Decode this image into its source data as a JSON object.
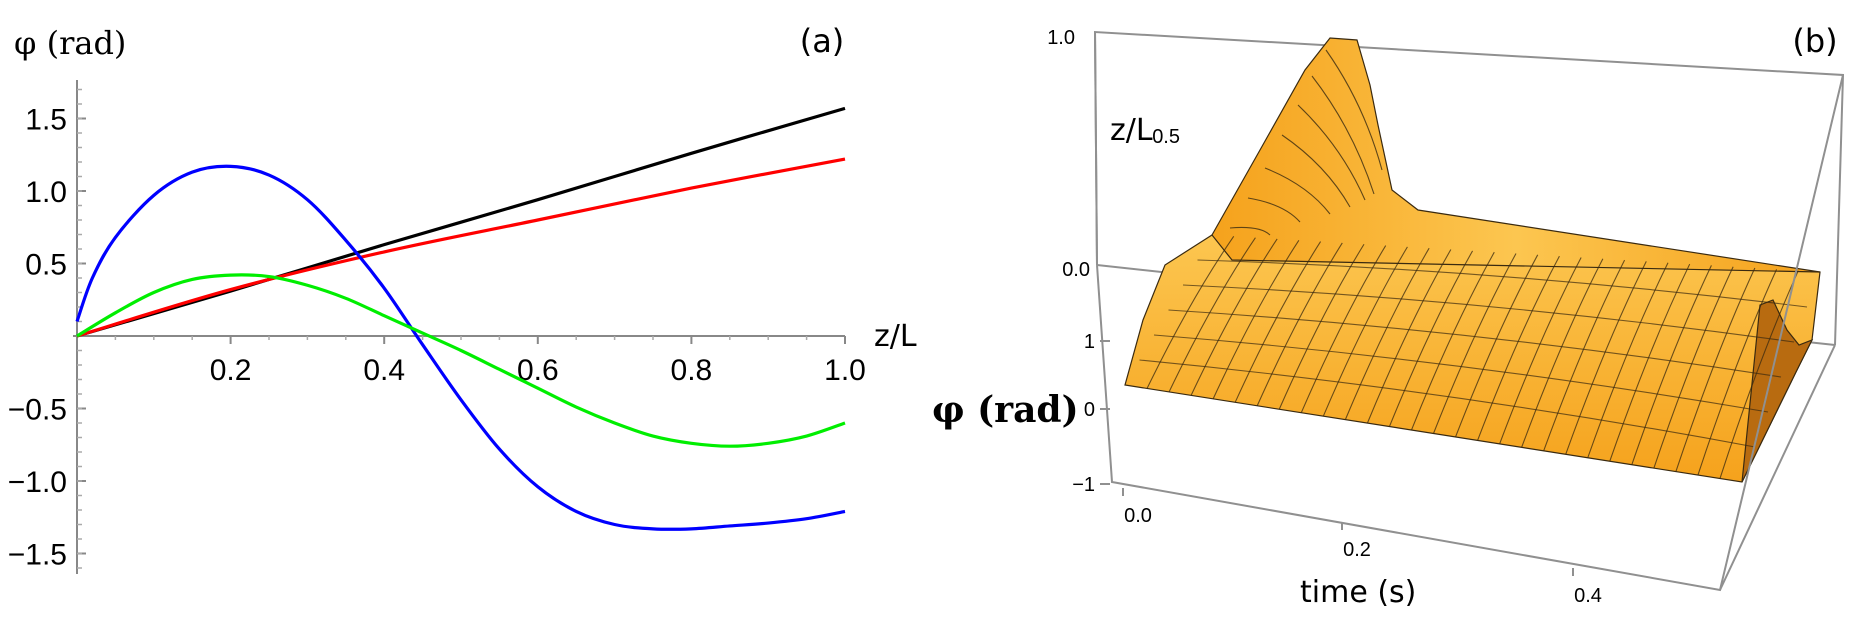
{
  "chart_data": [
    {
      "panel": "(a)",
      "type": "line",
      "ylabel": "φ (rad)",
      "xlabel": "z/L",
      "xlim": [
        0,
        1.0
      ],
      "ylim": [
        -1.65,
        1.8
      ],
      "x_ticks": [
        "0.2",
        "0.4",
        "0.6",
        "0.8",
        "1.0"
      ],
      "y_ticks": [
        "1.5",
        "1.0",
        "0.5",
        "-0.5",
        "-1.0",
        "-1.5"
      ],
      "series": [
        {
          "color": "#000000",
          "x": [
            0,
            0.2,
            0.4,
            0.6,
            0.8,
            1.0
          ],
          "values": [
            0.0,
            0.31,
            0.63,
            0.94,
            1.26,
            1.57
          ]
        },
        {
          "color": "#ff0000",
          "x": [
            0,
            0.2,
            0.4,
            0.6,
            0.8,
            1.0
          ],
          "values": [
            0.0,
            0.32,
            0.58,
            0.8,
            1.02,
            1.22
          ]
        },
        {
          "color": "#0000ff",
          "x": [
            0,
            0.02,
            0.05,
            0.1,
            0.15,
            0.2,
            0.25,
            0.3,
            0.35,
            0.4,
            0.45,
            0.5,
            0.55,
            0.6,
            0.65,
            0.7,
            0.75,
            0.8,
            0.85,
            0.9,
            0.95,
            1.0
          ],
          "values": [
            0.1,
            0.4,
            0.68,
            0.97,
            1.13,
            1.17,
            1.11,
            0.94,
            0.66,
            0.33,
            -0.06,
            -0.44,
            -0.78,
            -1.04,
            -1.21,
            -1.3,
            -1.33,
            -1.33,
            -1.31,
            -1.29,
            -1.26,
            -1.21
          ]
        },
        {
          "color": "#00ee00",
          "x": [
            0,
            0.05,
            0.1,
            0.15,
            0.2,
            0.25,
            0.3,
            0.35,
            0.4,
            0.45,
            0.5,
            0.55,
            0.6,
            0.65,
            0.7,
            0.75,
            0.8,
            0.85,
            0.9,
            0.95,
            1.0
          ],
          "values": [
            0.0,
            0.16,
            0.3,
            0.39,
            0.42,
            0.41,
            0.35,
            0.26,
            0.14,
            0.02,
            -0.1,
            -0.23,
            -0.36,
            -0.49,
            -0.6,
            -0.69,
            -0.74,
            -0.76,
            -0.74,
            -0.69,
            -0.6
          ]
        }
      ]
    },
    {
      "panel": "(b)",
      "type": "surface",
      "xlabel": "time (s)",
      "ylabel": "z/L",
      "zlabel": "φ (rad)",
      "time_ticks": [
        "0.0",
        "0.2",
        "0.4"
      ],
      "z_ticks": [
        "0.0",
        "0.5",
        "1.0"
      ],
      "phi_ticks": [
        "1",
        "0",
        "−1"
      ],
      "colors": {
        "surface": "#f5a21c",
        "surface_light": "#fcc650",
        "surface_dark": "#b86b10",
        "mesh": "#3a2a10",
        "box": "#909090"
      }
    }
  ]
}
